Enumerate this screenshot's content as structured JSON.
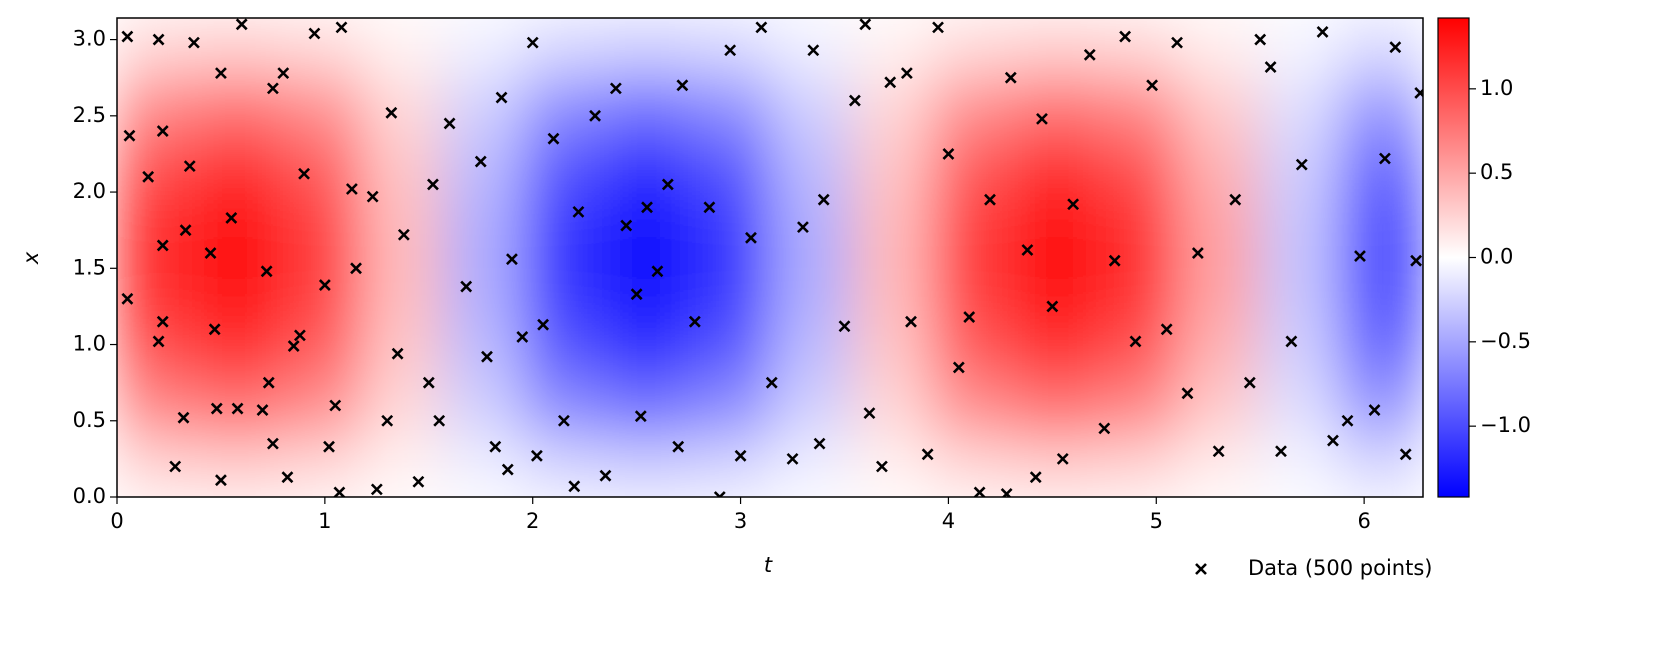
{
  "chart_data": {
    "type": "heatmap",
    "xlabel": "t",
    "ylabel": "x",
    "xlim": [
      0,
      6.2832
    ],
    "ylim": [
      0,
      3.1416
    ],
    "xticks": [
      0,
      1,
      2,
      3,
      4,
      5,
      6
    ],
    "yticks": [
      {
        "value": 0,
        "label": "0.0"
      },
      0.5,
      {
        "value": 1,
        "label": "1.0"
      },
      1.5,
      {
        "value": 2,
        "label": "2.0"
      },
      2.5,
      {
        "value": 3,
        "label": "3.0"
      }
    ],
    "heatmap": {
      "x": [
        0.196,
        0.589,
        0.982,
        1.374,
        1.767,
        2.16,
        2.553,
        2.945,
        3.338,
        3.731,
        4.123,
        4.516,
        4.909,
        5.301,
        5.694,
        6.087
      ],
      "y": [
        0.196,
        0.589,
        0.982,
        1.374,
        1.767,
        2.16,
        2.553,
        2.945
      ],
      "z": [
        [
          0.23,
          0.27,
          0.21,
          0.07,
          -0.09,
          -0.22,
          -0.27,
          -0.22,
          -0.09,
          0.08,
          0.21,
          0.27,
          0.23,
          0.1,
          -0.06,
          -0.21
        ],
        [
          0.66,
          0.78,
          0.61,
          0.21,
          -0.26,
          -0.64,
          -0.78,
          -0.63,
          -0.26,
          0.22,
          0.62,
          0.78,
          0.66,
          0.29,
          -0.18,
          -0.59
        ],
        [
          0.99,
          1.16,
          0.9,
          0.31,
          -0.38,
          -0.95,
          -1.16,
          -0.94,
          -0.38,
          0.32,
          0.92,
          1.16,
          0.97,
          0.43,
          -0.27,
          -0.88
        ],
        [
          1.16,
          1.37,
          1.07,
          0.37,
          -0.45,
          -1.12,
          -1.37,
          -1.11,
          -0.45,
          0.38,
          1.08,
          1.37,
          1.15,
          0.51,
          -0.32,
          -1.04
        ],
        [
          1.16,
          1.37,
          1.07,
          0.37,
          -0.45,
          -1.12,
          -1.37,
          -1.11,
          -0.45,
          0.38,
          1.08,
          1.37,
          1.15,
          0.51,
          -0.32,
          -1.04
        ],
        [
          0.99,
          1.16,
          0.9,
          0.31,
          -0.38,
          -0.95,
          -1.16,
          -0.94,
          -0.38,
          0.32,
          0.92,
          1.16,
          0.97,
          0.43,
          -0.27,
          -0.88
        ],
        [
          0.66,
          0.78,
          0.61,
          0.21,
          -0.26,
          -0.64,
          -0.78,
          -0.63,
          -0.26,
          0.22,
          0.62,
          0.78,
          0.66,
          0.29,
          -0.18,
          -0.59
        ],
        [
          0.23,
          0.27,
          0.21,
          0.07,
          -0.09,
          -0.22,
          -0.27,
          -0.22,
          -0.09,
          0.08,
          0.21,
          0.27,
          0.23,
          0.1,
          -0.06,
          -0.21
        ]
      ]
    },
    "colormap": {
      "low": "#0000ff",
      "mid": "#ffffff",
      "high": "#ff0000"
    },
    "zlim": [
      -1.42,
      1.42
    ],
    "zticks": [
      {
        "value": -1,
        "label": "−1.0"
      },
      {
        "value": -0.5,
        "label": "−0.5"
      },
      {
        "value": 0,
        "label": "0.0"
      },
      0.5,
      {
        "value": 1,
        "label": "1.0"
      }
    ],
    "scatter": {
      "name": "Data (500 points)",
      "color": "#000000",
      "x": [
        0.05,
        0.05,
        0.06,
        0.2,
        0.22,
        0.15,
        0.22,
        0.22,
        0.2,
        0.28,
        0.32,
        0.33,
        0.35,
        0.37,
        0.45,
        0.47,
        0.48,
        0.5,
        0.5,
        0.55,
        0.58,
        0.6,
        0.7,
        0.72,
        0.73,
        0.75,
        0.75,
        0.8,
        0.82,
        0.85,
        0.88,
        0.9,
        0.95,
        1.0,
        1.02,
        1.05,
        1.07,
        1.08,
        1.13,
        1.15,
        1.23,
        1.25,
        1.3,
        1.32,
        1.35,
        1.38,
        1.45,
        1.5,
        1.52,
        1.55,
        1.6,
        1.68,
        1.75,
        1.78,
        1.82,
        1.85,
        1.88,
        1.9,
        1.95,
        2.0,
        2.02,
        2.05,
        2.1,
        2.15,
        2.2,
        2.22,
        2.3,
        2.35,
        2.4,
        2.45,
        2.5,
        2.52,
        2.55,
        2.6,
        2.65,
        2.7,
        2.72,
        2.78,
        2.85,
        2.9,
        2.95,
        3.0,
        3.05,
        3.1,
        3.15,
        3.25,
        3.3,
        3.35,
        3.38,
        3.4,
        3.5,
        3.55,
        3.6,
        3.62,
        3.68,
        3.72,
        3.8,
        3.82,
        3.9,
        3.95,
        4.0,
        4.05,
        4.1,
        4.15,
        4.2,
        4.28,
        4.3,
        4.38,
        4.42,
        4.45,
        4.5,
        4.55,
        4.6,
        4.68,
        4.75,
        4.8,
        4.85,
        4.9,
        4.98,
        5.05,
        5.1,
        5.15,
        5.2,
        5.3,
        5.38,
        5.45,
        5.5,
        5.55,
        5.6,
        5.65,
        5.7,
        5.8,
        5.85,
        5.92,
        5.98,
        6.05,
        6.1,
        6.15,
        6.2,
        6.25,
        6.27
      ],
      "y": [
        3.02,
        1.3,
        2.37,
        3.0,
        2.4,
        2.1,
        1.65,
        1.15,
        1.02,
        0.2,
        0.52,
        1.75,
        2.17,
        2.98,
        1.6,
        1.1,
        0.58,
        0.11,
        2.78,
        1.83,
        0.58,
        3.1,
        0.57,
        1.48,
        0.75,
        0.35,
        2.68,
        2.78,
        0.13,
        0.99,
        1.06,
        2.12,
        3.04,
        1.39,
        0.33,
        0.6,
        0.03,
        3.08,
        2.02,
        1.5,
        1.97,
        0.05,
        0.5,
        2.52,
        0.94,
        1.72,
        0.1,
        0.75,
        2.05,
        0.5,
        2.45,
        1.38,
        2.2,
        0.92,
        0.33,
        2.62,
        0.18,
        1.56,
        1.05,
        2.98,
        0.27,
        1.13,
        2.35,
        0.5,
        0.07,
        1.87,
        2.5,
        0.14,
        2.68,
        1.78,
        1.33,
        0.53,
        1.9,
        1.48,
        2.05,
        0.33,
        2.7,
        1.15,
        1.9,
        0.0,
        2.93,
        0.27,
        1.7,
        3.08,
        0.75,
        0.25,
        1.77,
        2.93,
        0.35,
        1.95,
        1.12,
        2.6,
        3.1,
        0.55,
        0.2,
        2.72,
        2.78,
        1.15,
        0.28,
        3.08,
        2.25,
        0.85,
        1.18,
        0.03,
        1.95,
        0.02,
        2.75,
        1.62,
        0.13,
        2.48,
        1.25,
        0.25,
        1.92,
        2.9,
        0.45,
        1.55,
        3.02,
        1.02,
        2.7,
        1.1,
        2.98,
        0.68,
        1.6,
        0.3,
        1.95,
        0.75,
        3.0,
        2.82,
        0.3,
        1.02,
        2.18,
        3.05,
        0.37,
        0.5,
        1.58,
        0.57,
        2.22,
        2.95,
        0.28,
        1.55,
        2.65
      ]
    },
    "legend": "lower right"
  }
}
